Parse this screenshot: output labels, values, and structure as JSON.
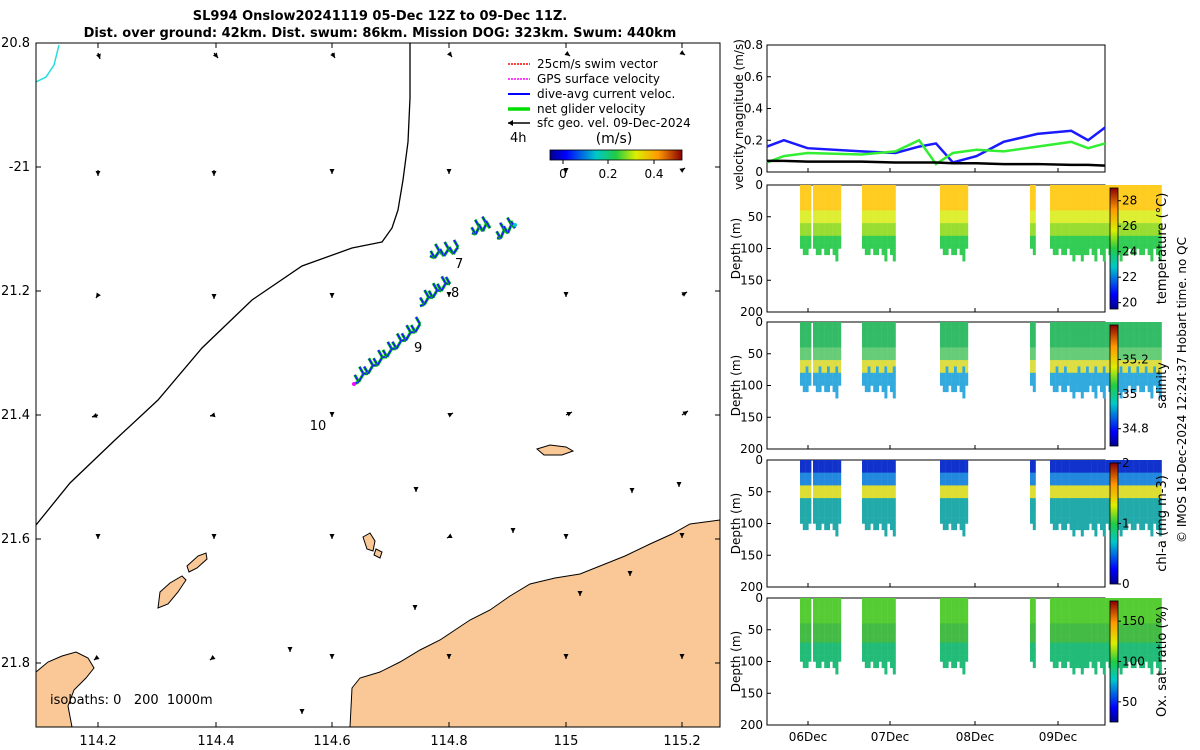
{
  "header": {
    "title_line1": "SL994 Onslow20241119 05-Dec 12Z to 09-Dec 11Z.",
    "title_line2": "Dist. over ground: 42km. Dist. swum: 86km. Mission DOG: 323km. Swum: 440km"
  },
  "map": {
    "lat_ticks": [
      "20.8",
      "-21",
      "21.2",
      "21.4",
      "21.6",
      "21.8"
    ],
    "lon_ticks": [
      "114.2",
      "114.4",
      "114.6",
      "114.8",
      "115",
      "115.2"
    ],
    "day_labels": [
      "7",
      "8",
      "9",
      "10"
    ],
    "isobaths_label": "isobaths: 0   200  1000m",
    "legend": {
      "items": [
        {
          "label": "25cm/s swim vector",
          "color": "#ff0000"
        },
        {
          "label": "GPS surface velocity",
          "color": "#ff00ff"
        },
        {
          "label": "dive-avg current veloc.",
          "color": "#0000ff"
        },
        {
          "label": "net glider velocity",
          "color": "#00dd00"
        },
        {
          "label": "sfc geo. vel. 09-Dec-2024",
          "color": "#000000"
        }
      ],
      "time_label": "4h",
      "colorbar_label": "(m/s)",
      "colorbar_ticks": [
        "0",
        "0.2",
        "0.4"
      ]
    }
  },
  "chart_data": [
    {
      "type": "line",
      "title": "",
      "ylabel": "velocity magnitude (m/s)",
      "ylim": [
        0,
        0.8
      ],
      "y_ticks": [
        "0",
        "0.2",
        "0.4",
        "0.6",
        "0.8"
      ],
      "x": [
        0,
        0.05,
        0.12,
        0.28,
        0.38,
        0.45,
        0.5,
        0.55,
        0.62,
        0.7,
        0.8,
        0.9,
        0.95,
        1.0
      ],
      "series": [
        {
          "name": "dive-avg current",
          "color": "#1a1aff",
          "values": [
            0.16,
            0.2,
            0.15,
            0.13,
            0.12,
            0.16,
            0.18,
            0.06,
            0.1,
            0.19,
            0.24,
            0.26,
            0.2,
            0.28
          ]
        },
        {
          "name": "net glider",
          "color": "#33ee33",
          "values": [
            0.06,
            0.1,
            0.12,
            0.11,
            0.13,
            0.2,
            0.05,
            0.12,
            0.14,
            0.13,
            0.16,
            0.19,
            0.15,
            0.18
          ]
        },
        {
          "name": "sfc geo",
          "color": "#000000",
          "values": [
            0.07,
            0.07,
            0.065,
            0.065,
            0.06,
            0.06,
            0.06,
            0.055,
            0.055,
            0.05,
            0.05,
            0.045,
            0.045,
            0.04
          ]
        }
      ]
    },
    {
      "type": "heatmap",
      "ylabel": "Depth (m)",
      "cbar_label": "temperature (°C)",
      "cbar_ticks": [
        "20",
        "22",
        "24",
        "26",
        "28"
      ],
      "cbar_range": [
        19.5,
        29
      ],
      "depth_ticks": [
        "0",
        "50",
        "100",
        "150",
        "200"
      ]
    },
    {
      "type": "heatmap",
      "ylabel": "Depth (m)",
      "cbar_label": "salinity",
      "cbar_ticks": [
        "34.8",
        "35",
        "35.2"
      ],
      "cbar_range": [
        34.7,
        35.4
      ],
      "depth_ticks": [
        "0",
        "50",
        "100",
        "150",
        "200"
      ]
    },
    {
      "type": "heatmap",
      "ylabel": "Depth (m)",
      "cbar_label": "chl-a (mg m-3)",
      "cbar_ticks": [
        "0",
        "1",
        "2"
      ],
      "cbar_range": [
        0,
        2
      ],
      "depth_ticks": [
        "0",
        "50",
        "100",
        "150",
        "200"
      ]
    },
    {
      "type": "heatmap",
      "ylabel": "Depth (m)",
      "cbar_label": "Ox. sat. ratio (%)",
      "cbar_ticks": [
        "50",
        "100",
        "150"
      ],
      "cbar_range": [
        25,
        175
      ],
      "depth_ticks": [
        "0",
        "50",
        "100",
        "150",
        "200"
      ],
      "x_ticks": [
        "06Dec",
        "07Dec",
        "08Dec",
        "09Dec"
      ]
    }
  ],
  "footer": {
    "credit": "© IMOS 16-Dec-2024 12:24:37 Hobart time. no QC"
  }
}
